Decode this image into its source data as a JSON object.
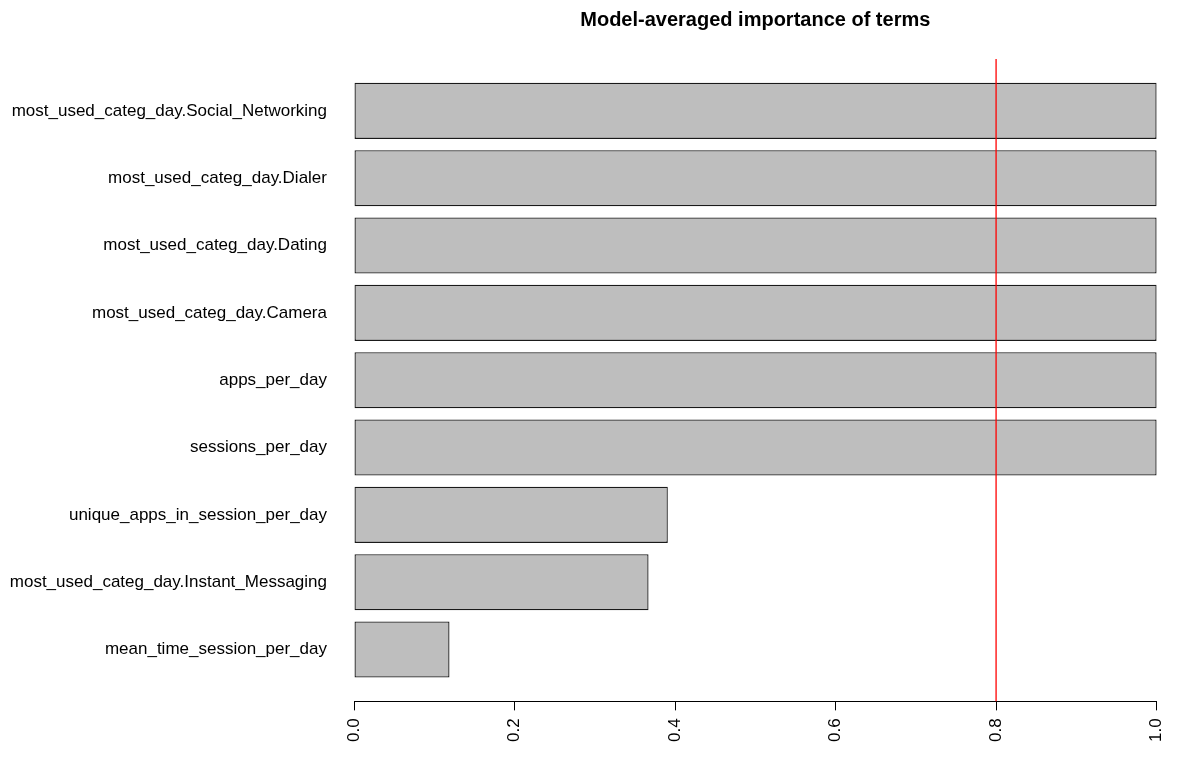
{
  "chart_data": {
    "type": "bar",
    "orientation": "horizontal",
    "title": "Model-averaged importance of terms",
    "categories": [
      "most_used_categ_day.Social_Networking",
      "most_used_categ_day.Dialer",
      "most_used_categ_day.Dating",
      "most_used_categ_day.Camera",
      "apps_per_day",
      "sessions_per_day",
      "unique_apps_in_session_per_day",
      "most_used_categ_day.Instant_Messaging",
      "mean_time_session_per_day"
    ],
    "values": [
      1,
      1,
      1,
      1,
      1,
      1,
      0.391,
      0.367,
      0.119
    ],
    "color": "#bebebe",
    "xlim": [
      0,
      1
    ],
    "xticks": [
      {
        "value": 0,
        "label": "0.0"
      },
      0.2,
      0.4,
      0.6,
      0.8,
      {
        "value": 1,
        "label": "1.0"
      }
    ],
    "ref_lines": [
      {
        "axis": "x",
        "value": 0.8,
        "color": "#ff0000"
      }
    ],
    "grid": false,
    "legend": false
  }
}
